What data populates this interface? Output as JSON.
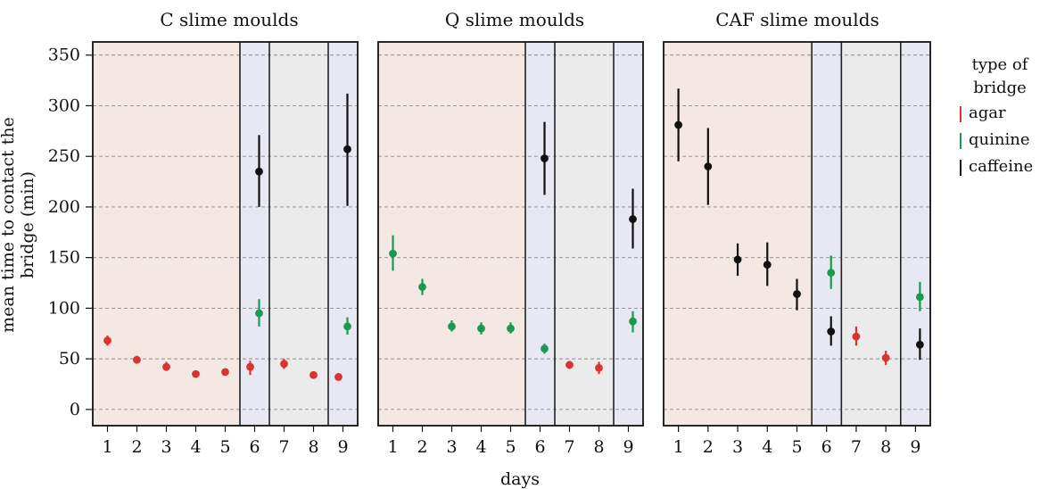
{
  "chart_data": {
    "type": "scatter",
    "ylabel": "mean time to contact the bridge (min)",
    "xlabel": "days",
    "ylim": [
      -16,
      363
    ],
    "yticks": [
      0,
      50,
      100,
      150,
      200,
      250,
      300,
      350
    ],
    "categories": [
      "1",
      "2",
      "3",
      "4",
      "5",
      "6",
      "7",
      "8",
      "9"
    ],
    "grid": true,
    "legend": {
      "title_line1": "type of",
      "title_line2": "bridge",
      "placement": "right",
      "items": [
        {
          "label": "agar",
          "color": "#d9342f"
        },
        {
          "label": "quinine",
          "color": "#1a9950"
        },
        {
          "label": "caffeine",
          "color": "#111111"
        }
      ]
    },
    "colors": {
      "agar": "#d9342f",
      "quinine": "#1a9950",
      "caffeine": "#111111"
    },
    "background": {
      "pink": "#f4e8e4",
      "blue": "#e7e8f1",
      "gray": "#ebebeb"
    },
    "panels": [
      {
        "title": "C slime moulds",
        "regions": [
          {
            "from": 1,
            "to": 5,
            "shade": "pink"
          },
          {
            "from": 6,
            "to": 6,
            "shade": "blue"
          },
          {
            "from": 7,
            "to": 8,
            "shade": "gray"
          },
          {
            "from": 9,
            "to": 9,
            "shade": "blue"
          }
        ],
        "points": [
          {
            "day": 1,
            "bridge": "agar",
            "mean": 68,
            "lo": 63,
            "hi": 73
          },
          {
            "day": 2,
            "bridge": "agar",
            "mean": 49,
            "lo": 46,
            "hi": 53
          },
          {
            "day": 3,
            "bridge": "agar",
            "mean": 42,
            "lo": 38,
            "hi": 47
          },
          {
            "day": 4,
            "bridge": "agar",
            "mean": 35,
            "lo": 33,
            "hi": 38
          },
          {
            "day": 5,
            "bridge": "agar",
            "mean": 37,
            "lo": 35,
            "hi": 40
          },
          {
            "day": 6,
            "bridge": "agar",
            "mean": 42,
            "lo": 34,
            "hi": 48
          },
          {
            "day": 6,
            "bridge": "quinine",
            "mean": 95,
            "lo": 82,
            "hi": 109
          },
          {
            "day": 6,
            "bridge": "caffeine",
            "mean": 235,
            "lo": 200,
            "hi": 271
          },
          {
            "day": 7,
            "bridge": "agar",
            "mean": 45,
            "lo": 40,
            "hi": 50
          },
          {
            "day": 8,
            "bridge": "agar",
            "mean": 34,
            "lo": 32,
            "hi": 37
          },
          {
            "day": 9,
            "bridge": "agar",
            "mean": 32,
            "lo": 29,
            "hi": 36
          },
          {
            "day": 9,
            "bridge": "quinine",
            "mean": 82,
            "lo": 74,
            "hi": 91
          },
          {
            "day": 9,
            "bridge": "caffeine",
            "mean": 257,
            "lo": 201,
            "hi": 312
          }
        ]
      },
      {
        "title": "Q slime moulds",
        "regions": [
          {
            "from": 1,
            "to": 5,
            "shade": "pink"
          },
          {
            "from": 6,
            "to": 6,
            "shade": "blue"
          },
          {
            "from": 7,
            "to": 8,
            "shade": "gray"
          },
          {
            "from": 9,
            "to": 9,
            "shade": "blue"
          }
        ],
        "points": [
          {
            "day": 1,
            "bridge": "quinine",
            "mean": 154,
            "lo": 137,
            "hi": 172
          },
          {
            "day": 2,
            "bridge": "quinine",
            "mean": 121,
            "lo": 113,
            "hi": 129
          },
          {
            "day": 3,
            "bridge": "quinine",
            "mean": 82,
            "lo": 77,
            "hi": 88
          },
          {
            "day": 4,
            "bridge": "quinine",
            "mean": 80,
            "lo": 74,
            "hi": 86
          },
          {
            "day": 5,
            "bridge": "quinine",
            "mean": 80,
            "lo": 75,
            "hi": 86
          },
          {
            "day": 6,
            "bridge": "quinine",
            "mean": 60,
            "lo": 55,
            "hi": 65
          },
          {
            "day": 6,
            "bridge": "caffeine",
            "mean": 248,
            "lo": 212,
            "hi": 284
          },
          {
            "day": 7,
            "bridge": "agar",
            "mean": 44,
            "lo": 40,
            "hi": 48
          },
          {
            "day": 8,
            "bridge": "agar",
            "mean": 41,
            "lo": 35,
            "hi": 47
          },
          {
            "day": 9,
            "bridge": "quinine",
            "mean": 87,
            "lo": 76,
            "hi": 97
          },
          {
            "day": 9,
            "bridge": "caffeine",
            "mean": 188,
            "lo": 159,
            "hi": 218
          }
        ]
      },
      {
        "title": "CAF slime moulds",
        "regions": [
          {
            "from": 1,
            "to": 5,
            "shade": "pink"
          },
          {
            "from": 6,
            "to": 6,
            "shade": "blue"
          },
          {
            "from": 7,
            "to": 8,
            "shade": "gray"
          },
          {
            "from": 9,
            "to": 9,
            "shade": "blue"
          }
        ],
        "points": [
          {
            "day": 1,
            "bridge": "caffeine",
            "mean": 281,
            "lo": 245,
            "hi": 317
          },
          {
            "day": 2,
            "bridge": "caffeine",
            "mean": 240,
            "lo": 202,
            "hi": 278
          },
          {
            "day": 3,
            "bridge": "caffeine",
            "mean": 148,
            "lo": 132,
            "hi": 164
          },
          {
            "day": 4,
            "bridge": "caffeine",
            "mean": 143,
            "lo": 122,
            "hi": 165
          },
          {
            "day": 5,
            "bridge": "caffeine",
            "mean": 114,
            "lo": 98,
            "hi": 129
          },
          {
            "day": 6,
            "bridge": "quinine",
            "mean": 135,
            "lo": 119,
            "hi": 152
          },
          {
            "day": 6,
            "bridge": "caffeine",
            "mean": 77,
            "lo": 63,
            "hi": 92
          },
          {
            "day": 7,
            "bridge": "agar",
            "mean": 72,
            "lo": 63,
            "hi": 82
          },
          {
            "day": 8,
            "bridge": "agar",
            "mean": 51,
            "lo": 44,
            "hi": 58
          },
          {
            "day": 9,
            "bridge": "quinine",
            "mean": 111,
            "lo": 97,
            "hi": 126
          },
          {
            "day": 9,
            "bridge": "caffeine",
            "mean": 64,
            "lo": 49,
            "hi": 80
          }
        ]
      }
    ]
  }
}
